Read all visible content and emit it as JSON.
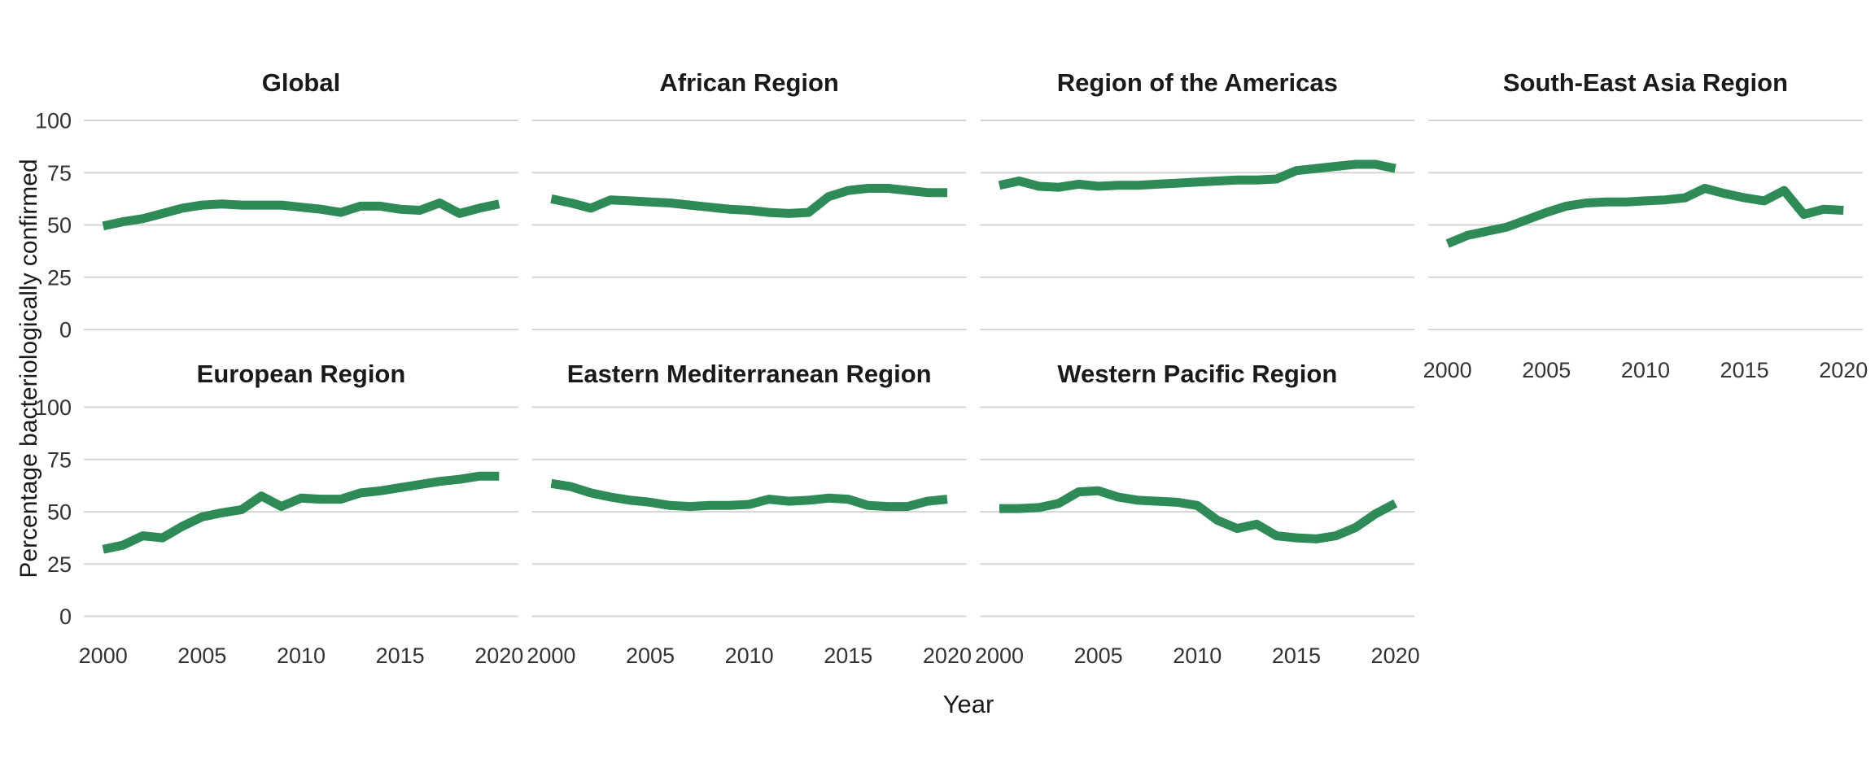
{
  "figure": {
    "y_axis_title": "Percentage bacteriologically confirmed",
    "x_axis_title": "Year"
  },
  "style": {
    "line_color": "#2e8b57",
    "grid_color": "#d6d6d6",
    "title_color": "#1a1a1a",
    "tick_label_color": "#333333",
    "background": "#ffffff"
  },
  "chart_data": {
    "type": "line",
    "title": "",
    "xlabel": "Year",
    "ylabel": "Percentage bacteriologically confirmed",
    "ylim": [
      0,
      100
    ],
    "xlim": [
      2000,
      2020
    ],
    "y_ticks": [
      0,
      25,
      50,
      75,
      100
    ],
    "x_ticks": [
      2000,
      2005,
      2010,
      2015,
      2020
    ],
    "grid": "horizontal gridlines only, light gray, no vertical gridlines",
    "legend_position": "none (facet titles above each panel)",
    "facet_layout": "2 rows x 4 columns, 7 panels, last bottom-right slot empty",
    "x": [
      2000,
      2001,
      2002,
      2003,
      2004,
      2005,
      2006,
      2007,
      2008,
      2009,
      2010,
      2011,
      2012,
      2013,
      2014,
      2015,
      2016,
      2017,
      2018,
      2019,
      2020
    ],
    "series": [
      {
        "name": "Global",
        "values": [
          49.5,
          51.5,
          53,
          55.5,
          58,
          59.5,
          60,
          59.5,
          59.5,
          59.5,
          58.5,
          57.5,
          56,
          59,
          59,
          57.5,
          57,
          60.5,
          55.5,
          58,
          60
        ]
      },
      {
        "name": "African Region",
        "values": [
          62.5,
          60.5,
          58,
          62,
          61.5,
          61,
          60.5,
          59.5,
          58.5,
          57.5,
          57,
          56,
          55.5,
          56,
          63.5,
          66.5,
          67.5,
          67.5,
          66.5,
          65.5,
          65.5
        ]
      },
      {
        "name": "Region of the Americas",
        "values": [
          69,
          71,
          68.5,
          68,
          69.5,
          68.5,
          69,
          69,
          69.5,
          70,
          70.5,
          71,
          71.5,
          71.5,
          72,
          76,
          77,
          78,
          79,
          79,
          77
        ]
      },
      {
        "name": "South-East Asia Region",
        "values": [
          41,
          45,
          47,
          49,
          52.5,
          56,
          59,
          60.5,
          61,
          61,
          61.5,
          62,
          63,
          67.5,
          65,
          63,
          61.5,
          66.5,
          55,
          57.5,
          57
        ]
      },
      {
        "name": "European Region",
        "values": [
          32,
          34,
          38.5,
          37.5,
          43,
          47.5,
          49.5,
          51,
          57.5,
          52.5,
          56.5,
          56,
          56,
          59,
          60,
          61.5,
          63,
          64.5,
          65.5,
          67,
          67
        ]
      },
      {
        "name": "Eastern Mediterranean Region",
        "values": [
          63.5,
          62,
          59,
          57,
          55.5,
          54.5,
          53,
          52.5,
          53,
          53,
          53.5,
          56,
          55,
          55.5,
          56.5,
          56,
          53,
          52.5,
          52.5,
          55,
          56
        ]
      },
      {
        "name": "Western Pacific Region",
        "values": [
          51.5,
          51.5,
          52,
          54,
          59.5,
          60,
          57,
          55.5,
          55,
          54.5,
          53,
          46,
          42,
          44,
          38.5,
          37.5,
          37,
          38.5,
          42.5,
          49,
          54
        ]
      }
    ]
  }
}
